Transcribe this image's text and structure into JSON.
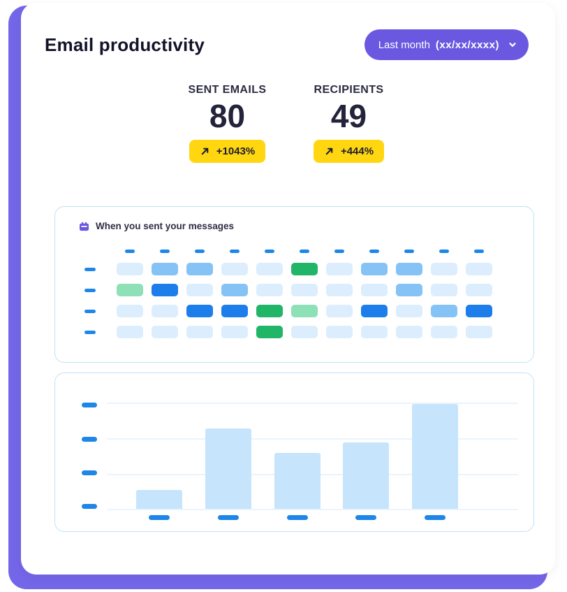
{
  "colors": {
    "background_purple": "#7466E8",
    "button_purple": "#6A58E0",
    "badge_yellow": "#FFD60F",
    "panel_border": "#BFE2F8",
    "dash_blue": "#1E86E8",
    "bar_fill": "#C6E4FC",
    "gridline": "#EAF4FD",
    "text_dark": "#131329"
  },
  "header": {
    "title": "Email productivity",
    "period": {
      "label": "Last month",
      "value": "(xx/xx/xxxx)"
    }
  },
  "stats": [
    {
      "label": "SENT EMAILS",
      "value": "80",
      "change": "+1043%"
    },
    {
      "label": "RECIPIENTS",
      "value": "49",
      "change": "+444%"
    }
  ],
  "heatmap": {
    "title": "When you sent your messages",
    "columns": 11,
    "rows": 4,
    "axis_labels": "placeholder-dashes",
    "palette": {
      "l": "#DCEEFD",
      "m": "#85C3F6",
      "s": "#1C7DEB",
      "g": "#21B567",
      "t": "#8EE0B6"
    },
    "cells": [
      [
        "l",
        "m",
        "m",
        "l",
        "l",
        "g",
        "l",
        "m",
        "m",
        "l",
        "l"
      ],
      [
        "t",
        "s",
        "l",
        "m",
        "l",
        "l",
        "l",
        "l",
        "m",
        "l",
        "l"
      ],
      [
        "l",
        "l",
        "s",
        "s",
        "g",
        "t",
        "l",
        "s",
        "l",
        "m",
        "s"
      ],
      [
        "l",
        "l",
        "l",
        "l",
        "g",
        "l",
        "l",
        "l",
        "l",
        "l",
        "l"
      ]
    ]
  },
  "chart_data": {
    "type": "bar",
    "categories": [
      "",
      "",
      "",
      "",
      ""
    ],
    "values": [
      18,
      76,
      53,
      63,
      99
    ],
    "title": "",
    "xlabel": "",
    "ylabel": "",
    "ylim": [
      0,
      100
    ],
    "y_ticks": 4,
    "grid": true,
    "legend": false,
    "tick_labels": "placeholder-dashes"
  }
}
